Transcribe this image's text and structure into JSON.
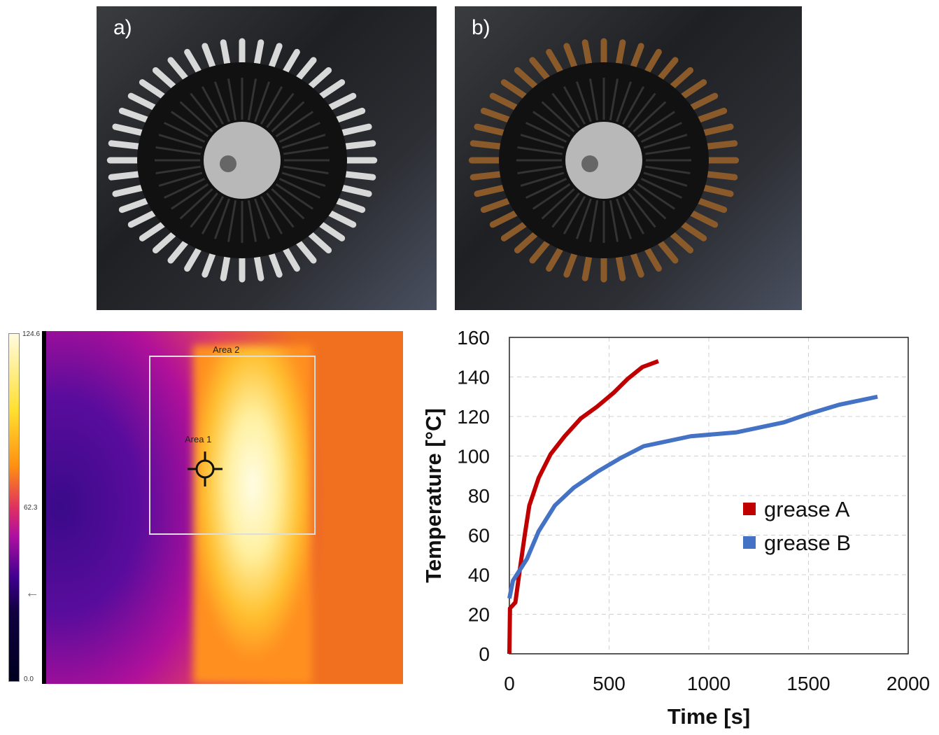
{
  "panels": {
    "a_label": "a)",
    "b_label": "b)"
  },
  "thermal": {
    "colorbar_max": "124.6",
    "colorbar_mid": "62.3",
    "colorbar_min": "0.0",
    "area1": "Area 1",
    "area2": "Area 2"
  },
  "colors": {
    "grease_a": "#c00000",
    "grease_b": "#4472c4"
  },
  "chart_data": {
    "type": "line",
    "xlabel": "Time [s]",
    "ylabel": "Temperature [°C]",
    "xlim": [
      0,
      2000
    ],
    "ylim": [
      0,
      160
    ],
    "xticks": [
      "0",
      "500",
      "1000",
      "1500",
      "2000"
    ],
    "yticks": [
      "0",
      "20",
      "40",
      "60",
      "80",
      "100",
      "120",
      "140",
      "160"
    ],
    "grid": true,
    "legend": "center-right",
    "series": [
      {
        "name": "grease A",
        "color": "#c00000",
        "x": [
          0,
          3,
          30,
          53,
          77,
          100,
          147,
          207,
          277,
          358,
          440,
          523,
          593,
          667,
          747
        ],
        "y": [
          0,
          23,
          26,
          43,
          60,
          75,
          89,
          101,
          110,
          119,
          125,
          132,
          139,
          145,
          148
        ]
      },
      {
        "name": "grease B",
        "color": "#4472c4",
        "x": [
          0,
          18,
          88,
          147,
          228,
          323,
          440,
          558,
          674,
          909,
          1140,
          1375,
          1491,
          1656,
          1846
        ],
        "y": [
          28,
          37,
          48,
          62,
          75,
          84,
          92,
          99,
          105,
          110,
          112,
          117,
          121,
          126,
          130
        ]
      }
    ]
  }
}
